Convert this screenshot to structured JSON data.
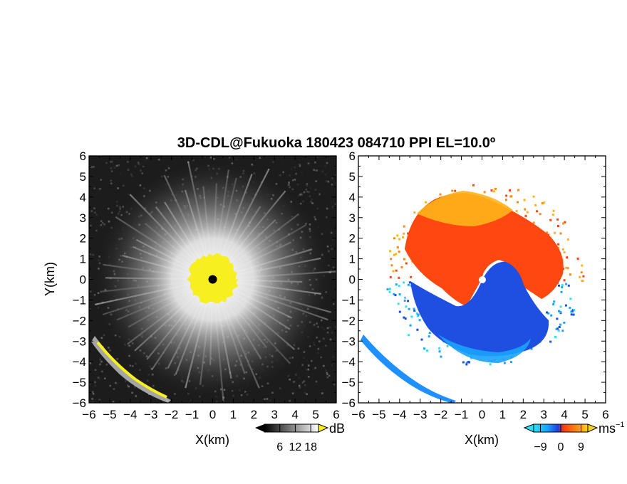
{
  "title": "3D-CDL@Fukuoka 180423 084710 PPI EL=10.0º",
  "colors": {
    "reflectivity_fill": "#f7ef1f",
    "velocity_negative": "#1f4fe0",
    "velocity_positive": "#ff4810",
    "velocity_far": "#ffb31a",
    "background_dark": "#1c1c1c"
  },
  "chart_data": [
    {
      "type": "heatmap",
      "panel": "left",
      "field": "signal-to-noise ratio (grayscale PPI)",
      "x_ticks": [
        "−6",
        "−5",
        "−4",
        "−3",
        "−2",
        "−1",
        "0",
        "1",
        "2",
        "3",
        "4",
        "5",
        "6"
      ],
      "y_ticks": [
        "6",
        "5",
        "4",
        "3",
        "2",
        "1",
        "0",
        "−1",
        "−2",
        "−3",
        "−4",
        "−5",
        "−6"
      ],
      "xlabel": "X(km)",
      "ylabel": "Y(km)",
      "xlim": [
        -6,
        6
      ],
      "ylim": [
        -6,
        6
      ],
      "echo_core_radius_km": 1.2,
      "colorbar": {
        "ticks": [
          "6",
          "12",
          "18"
        ],
        "unit": "dB",
        "range": [
          0,
          21
        ]
      }
    },
    {
      "type": "heatmap",
      "panel": "right",
      "field": "Doppler velocity",
      "x_ticks": [
        "−6",
        "−5",
        "−4",
        "−3",
        "−2",
        "−1",
        "0",
        "1",
        "2",
        "3",
        "4",
        "5",
        "6"
      ],
      "y_ticks": [
        "6",
        "5",
        "4",
        "3",
        "2",
        "1",
        "0",
        "−1",
        "−2",
        "−3",
        "−4",
        "−5",
        "−6"
      ],
      "xlabel": "X(km)",
      "ylabel": "",
      "xlim": [
        -6,
        6
      ],
      "ylim": [
        -6,
        6
      ],
      "colorbar": {
        "ticks": [
          "−9",
          "0",
          "9"
        ],
        "unit": "ms",
        "unit_exponent": "−1",
        "range": [
          -12,
          12
        ]
      }
    }
  ]
}
